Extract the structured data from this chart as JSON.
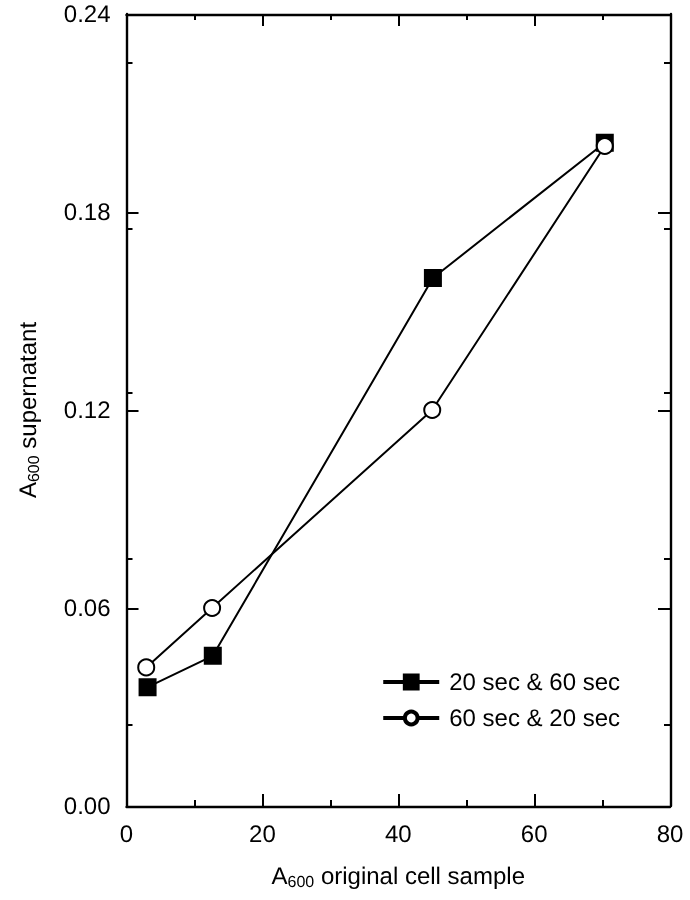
{
  "chart_data": {
    "type": "line",
    "xlabel": "A$_{600}$ original cell sample",
    "ylabel": "A$_{600}$ supernatant",
    "xlim": [
      0,
      80
    ],
    "xticks": [
      0,
      20,
      40,
      60,
      80
    ],
    "ylim": [
      0,
      0.24
    ],
    "yticks": [
      {
        "value": 0,
        "label": "0.00"
      },
      0.06,
      0.12,
      0.18,
      0.24
    ],
    "grid": false,
    "legend": "bottom right",
    "line_style": "solid",
    "series": [
      {
        "name": "20 sec & 60 sec",
        "color": "#000000",
        "marker": "square",
        "x": [
          3.1,
          12.7,
          45.1,
          70.4
        ],
        "values": [
          0.036,
          0.0455,
          0.16,
          0.201
        ]
      },
      {
        "name": "60 sec & 20 sec",
        "color": "#000000",
        "marker": "circle",
        "x": [
          2.9,
          12.6,
          45,
          70.4
        ],
        "values": [
          0.042,
          0.06,
          0.12,
          0.2
        ]
      }
    ]
  }
}
